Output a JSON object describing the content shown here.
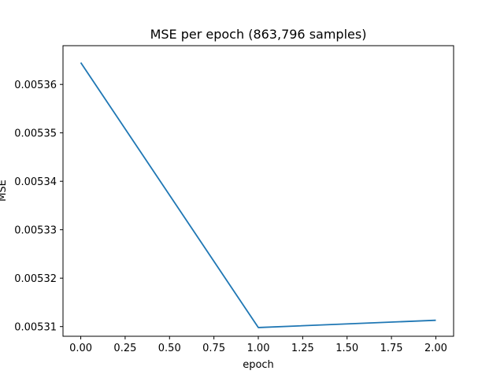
{
  "chart_data": {
    "type": "line",
    "title": "MSE per epoch (863,796 samples)",
    "xlabel": "epoch",
    "ylabel": "MSE",
    "xlim": [
      -0.1,
      2.1
    ],
    "ylim": [
      0.005308,
      0.005368
    ],
    "x_ticks": [
      0.0,
      0.25,
      0.5,
      0.75,
      1.0,
      1.25,
      1.5,
      1.75,
      2.0
    ],
    "x_tick_labels": [
      "0.00",
      "0.25",
      "0.50",
      "0.75",
      "1.00",
      "1.25",
      "1.50",
      "1.75",
      "2.00"
    ],
    "y_ticks": [
      0.00531,
      0.00532,
      0.00533,
      0.00534,
      0.00535,
      0.00536
    ],
    "y_tick_labels": [
      "0.00531",
      "0.00532",
      "0.00533",
      "0.00534",
      "0.00535",
      "0.00536"
    ],
    "grid": false,
    "series": [
      {
        "x": [
          0,
          1,
          2
        ],
        "values": [
          0.0053645,
          0.0053098,
          0.0053113
        ],
        "color": "#1f77b4"
      }
    ]
  }
}
